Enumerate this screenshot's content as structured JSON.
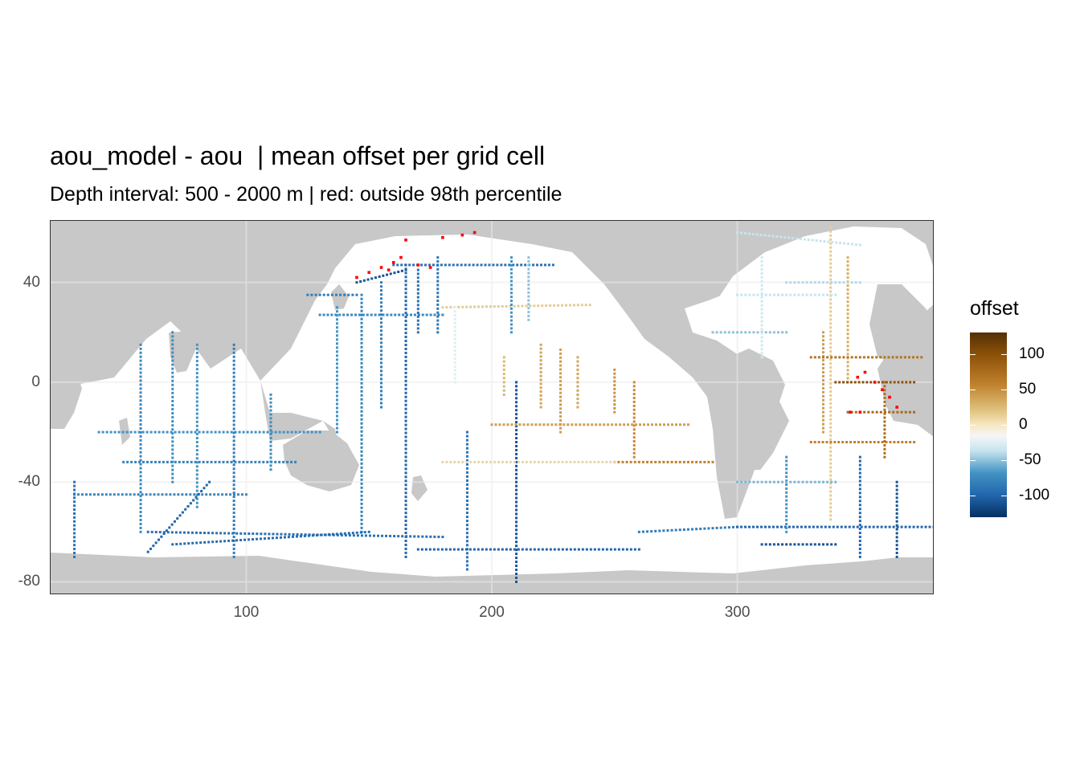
{
  "title": "aou_model - aou  | mean offset per grid cell",
  "subtitle": "Depth interval: 500 - 2000 m | red: outside 98th percentile",
  "x_axis": {
    "ticks": [
      "100",
      "200",
      "300"
    ]
  },
  "y_axis": {
    "ticks": [
      "40",
      "0",
      "-40",
      "-80"
    ]
  },
  "legend": {
    "title": "offset",
    "labels": [
      "100",
      "50",
      "0",
      "-50",
      "-100"
    ]
  },
  "colors": {
    "land": "#c8c8c8",
    "ocean": "#ffffff",
    "outlier": "#ff0000",
    "scale_high": "#543005",
    "scale_mid": "#f5f5f5",
    "scale_low": "#053061"
  },
  "chart_data": {
    "type": "heatmap",
    "title": "aou_model - aou  | mean offset per grid cell",
    "subtitle": "Depth interval: 500 - 2000 m | red: outside 98th percentile",
    "xlim": [
      20,
      380
    ],
    "ylim": [
      -85,
      65
    ],
    "x_ticks": [
      100,
      200,
      300
    ],
    "y_ticks": [
      40,
      0,
      -40,
      -80
    ],
    "grid": true,
    "legend": {
      "title": "offset",
      "position": "right",
      "breaks": [
        100,
        50,
        0,
        -50,
        -100
      ],
      "limits": [
        -130,
        130
      ]
    },
    "tracks": [
      {
        "lon1": 130,
        "lat1": 27,
        "lon2": 180,
        "lat2": 27,
        "offset": -70
      },
      {
        "lon1": 180,
        "lat1": 30,
        "lon2": 240,
        "lat2": 31,
        "offset": 20
      },
      {
        "lon1": 125,
        "lat1": 35,
        "lon2": 145,
        "lat2": 35,
        "offset": -80
      },
      {
        "lon1": 145,
        "lat1": 40,
        "lon2": 165,
        "lat2": 45,
        "offset": -110
      },
      {
        "lon1": 160,
        "lat1": 47,
        "lon2": 225,
        "lat2": 47,
        "offset": -90
      },
      {
        "lon1": 165,
        "lat1": 47,
        "lon2": 165,
        "lat2": -70,
        "offset": -100
      },
      {
        "lon1": 147,
        "lat1": 35,
        "lon2": 147,
        "lat2": -60,
        "offset": -75
      },
      {
        "lon1": 137,
        "lat1": 30,
        "lon2": 137,
        "lat2": -20,
        "offset": -60
      },
      {
        "lon1": 155,
        "lat1": 40,
        "lon2": 155,
        "lat2": -10,
        "offset": -80
      },
      {
        "lon1": 170,
        "lat1": 45,
        "lon2": 170,
        "lat2": 20,
        "offset": -90
      },
      {
        "lon1": 178,
        "lat1": 50,
        "lon2": 178,
        "lat2": 20,
        "offset": -85
      },
      {
        "lon1": 208,
        "lat1": 50,
        "lon2": 208,
        "lat2": 20,
        "offset": -60
      },
      {
        "lon1": 215,
        "lat1": 50,
        "lon2": 215,
        "lat2": 25,
        "offset": -40
      },
      {
        "lon1": 210,
        "lat1": 0,
        "lon2": 210,
        "lat2": -80,
        "offset": -110
      },
      {
        "lon1": 190,
        "lat1": -20,
        "lon2": 190,
        "lat2": -75,
        "offset": -90
      },
      {
        "lon1": 185,
        "lat1": 30,
        "lon2": 185,
        "lat2": 0,
        "offset": -10
      },
      {
        "lon1": 220,
        "lat1": 15,
        "lon2": 220,
        "lat2": -10,
        "offset": 40
      },
      {
        "lon1": 228,
        "lat1": 13,
        "lon2": 228,
        "lat2": -20,
        "offset": 45
      },
      {
        "lon1": 235,
        "lat1": 10,
        "lon2": 235,
        "lat2": -10,
        "offset": 40
      },
      {
        "lon1": 250,
        "lat1": 5,
        "lon2": 250,
        "lat2": -12,
        "offset": 50
      },
      {
        "lon1": 258,
        "lat1": 0,
        "lon2": 258,
        "lat2": -30,
        "offset": 55
      },
      {
        "lon1": 205,
        "lat1": 10,
        "lon2": 205,
        "lat2": -5,
        "offset": 30
      },
      {
        "lon1": 200,
        "lat1": -17,
        "lon2": 280,
        "lat2": -17,
        "offset": 45
      },
      {
        "lon1": 250,
        "lat1": -32,
        "lon2": 290,
        "lat2": -32,
        "offset": 60
      },
      {
        "lon1": 180,
        "lat1": -32,
        "lon2": 250,
        "lat2": -32,
        "offset": 15
      },
      {
        "lon1": 170,
        "lat1": -67,
        "lon2": 260,
        "lat2": -67,
        "offset": -100
      },
      {
        "lon1": 260,
        "lat1": -60,
        "lon2": 300,
        "lat2": -58,
        "offset": -80
      },
      {
        "lon1": 300,
        "lat1": -58,
        "lon2": 380,
        "lat2": -58,
        "offset": -100
      },
      {
        "lon1": 310,
        "lat1": -65,
        "lon2": 340,
        "lat2": -65,
        "offset": -110
      },
      {
        "lon1": 40,
        "lat1": -20,
        "lon2": 130,
        "lat2": -20,
        "offset": -60
      },
      {
        "lon1": 50,
        "lat1": -32,
        "lon2": 120,
        "lat2": -32,
        "offset": -75
      },
      {
        "lon1": 30,
        "lat1": -45,
        "lon2": 100,
        "lat2": -45,
        "offset": -70
      },
      {
        "lon1": 60,
        "lat1": -60,
        "lon2": 180,
        "lat2": -62,
        "offset": -90
      },
      {
        "lon1": 57,
        "lat1": 15,
        "lon2": 57,
        "lat2": -60,
        "offset": -70
      },
      {
        "lon1": 70,
        "lat1": 20,
        "lon2": 70,
        "lat2": -40,
        "offset": -65
      },
      {
        "lon1": 80,
        "lat1": 15,
        "lon2": 80,
        "lat2": -50,
        "offset": -60
      },
      {
        "lon1": 95,
        "lat1": 15,
        "lon2": 95,
        "lat2": -70,
        "offset": -80
      },
      {
        "lon1": 110,
        "lat1": -5,
        "lon2": 110,
        "lat2": -35,
        "offset": -65
      },
      {
        "lon1": 30,
        "lat1": -40,
        "lon2": 30,
        "lat2": -70,
        "offset": -90
      },
      {
        "lon1": 85,
        "lat1": -40,
        "lon2": 60,
        "lat2": -68,
        "offset": -100
      },
      {
        "lon1": 70,
        "lat1": -65,
        "lon2": 150,
        "lat2": -60,
        "offset": -95
      },
      {
        "lon1": 338,
        "lat1": 62,
        "lon2": 338,
        "lat2": -55,
        "offset": 20
      },
      {
        "lon1": 345,
        "lat1": 50,
        "lon2": 345,
        "lat2": 0,
        "offset": 35
      },
      {
        "lon1": 335,
        "lat1": 20,
        "lon2": 335,
        "lat2": -20,
        "offset": 45
      },
      {
        "lon1": 330,
        "lat1": 10,
        "lon2": 375,
        "lat2": 10,
        "offset": 70
      },
      {
        "lon1": 340,
        "lat1": 0,
        "lon2": 372,
        "lat2": 0,
        "offset": 100
      },
      {
        "lon1": 345,
        "lat1": -12,
        "lon2": 372,
        "lat2": -12,
        "offset": 80
      },
      {
        "lon1": 330,
        "lat1": -24,
        "lon2": 372,
        "lat2": -24,
        "offset": 60
      },
      {
        "lon1": 360,
        "lat1": 0,
        "lon2": 360,
        "lat2": -30,
        "offset": 75
      },
      {
        "lon1": 320,
        "lat1": 40,
        "lon2": 350,
        "lat2": 40,
        "offset": -30
      },
      {
        "lon1": 300,
        "lat1": 35,
        "lon2": 340,
        "lat2": 35,
        "offset": -25
      },
      {
        "lon1": 290,
        "lat1": 20,
        "lon2": 320,
        "lat2": 20,
        "offset": -40
      },
      {
        "lon1": 300,
        "lat1": 60,
        "lon2": 350,
        "lat2": 55,
        "offset": -25
      },
      {
        "lon1": 310,
        "lat1": 50,
        "lon2": 310,
        "lat2": 10,
        "offset": -20
      },
      {
        "lon1": 320,
        "lat1": -30,
        "lon2": 320,
        "lat2": -60,
        "offset": -60
      },
      {
        "lon1": 300,
        "lat1": -40,
        "lon2": 340,
        "lat2": -40,
        "offset": -45
      },
      {
        "lon1": 350,
        "lat1": -30,
        "lon2": 350,
        "lat2": -70,
        "offset": -100
      },
      {
        "lon1": 365,
        "lat1": -40,
        "lon2": 365,
        "lat2": -70,
        "offset": -110
      }
    ],
    "outliers": [
      {
        "lon": 145,
        "lat": 42
      },
      {
        "lon": 150,
        "lat": 44
      },
      {
        "lon": 155,
        "lat": 46
      },
      {
        "lon": 160,
        "lat": 48
      },
      {
        "lon": 163,
        "lat": 50
      },
      {
        "lon": 158,
        "lat": 45
      },
      {
        "lon": 170,
        "lat": 47
      },
      {
        "lon": 175,
        "lat": 46
      },
      {
        "lon": 165,
        "lat": 57
      },
      {
        "lon": 180,
        "lat": 58
      },
      {
        "lon": 188,
        "lat": 59
      },
      {
        "lon": 193,
        "lat": 60
      },
      {
        "lon": 352,
        "lat": 4
      },
      {
        "lon": 356,
        "lat": 0
      },
      {
        "lon": 359,
        "lat": -3
      },
      {
        "lon": 362,
        "lat": -6
      },
      {
        "lon": 365,
        "lat": -10
      },
      {
        "lon": 349,
        "lat": 2
      },
      {
        "lon": 346,
        "lat": -12
      },
      {
        "lon": 350,
        "lat": -12
      }
    ]
  }
}
